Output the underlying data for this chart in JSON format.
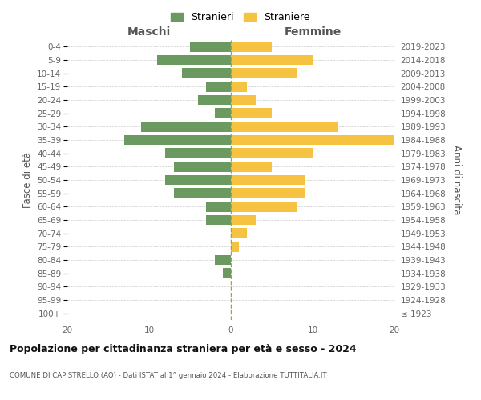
{
  "age_groups": [
    "100+",
    "95-99",
    "90-94",
    "85-89",
    "80-84",
    "75-79",
    "70-74",
    "65-69",
    "60-64",
    "55-59",
    "50-54",
    "45-49",
    "40-44",
    "35-39",
    "30-34",
    "25-29",
    "20-24",
    "15-19",
    "10-14",
    "5-9",
    "0-4"
  ],
  "birth_years": [
    "≤ 1923",
    "1924-1928",
    "1929-1933",
    "1934-1938",
    "1939-1943",
    "1944-1948",
    "1949-1953",
    "1954-1958",
    "1959-1963",
    "1964-1968",
    "1969-1973",
    "1974-1978",
    "1979-1983",
    "1984-1988",
    "1989-1993",
    "1994-1998",
    "1999-2003",
    "2004-2008",
    "2009-2013",
    "2014-2018",
    "2019-2023"
  ],
  "males": [
    0,
    0,
    0,
    1,
    2,
    0,
    0,
    3,
    3,
    7,
    8,
    7,
    8,
    13,
    11,
    2,
    4,
    3,
    6,
    9,
    5
  ],
  "females": [
    0,
    0,
    0,
    0,
    0,
    1,
    2,
    3,
    8,
    9,
    9,
    5,
    10,
    20,
    13,
    5,
    3,
    2,
    8,
    10,
    5
  ],
  "male_color": "#6a9a5f",
  "female_color": "#f5c242",
  "background_color": "#ffffff",
  "grid_color": "#cccccc",
  "center_line_color": "#a0a050",
  "title": "Popolazione per cittadinanza straniera per età e sesso - 2024",
  "subtitle": "COMUNE DI CAPISTRELLO (AQ) - Dati ISTAT al 1° gennaio 2024 - Elaborazione TUTTITALIA.IT",
  "label_maschi": "Maschi",
  "label_femmine": "Femmine",
  "ylabel_left": "Fasce di età",
  "ylabel_right": "Anni di nascita",
  "legend_male": "Stranieri",
  "legend_female": "Straniere",
  "xlim": 20,
  "bar_height": 0.75
}
